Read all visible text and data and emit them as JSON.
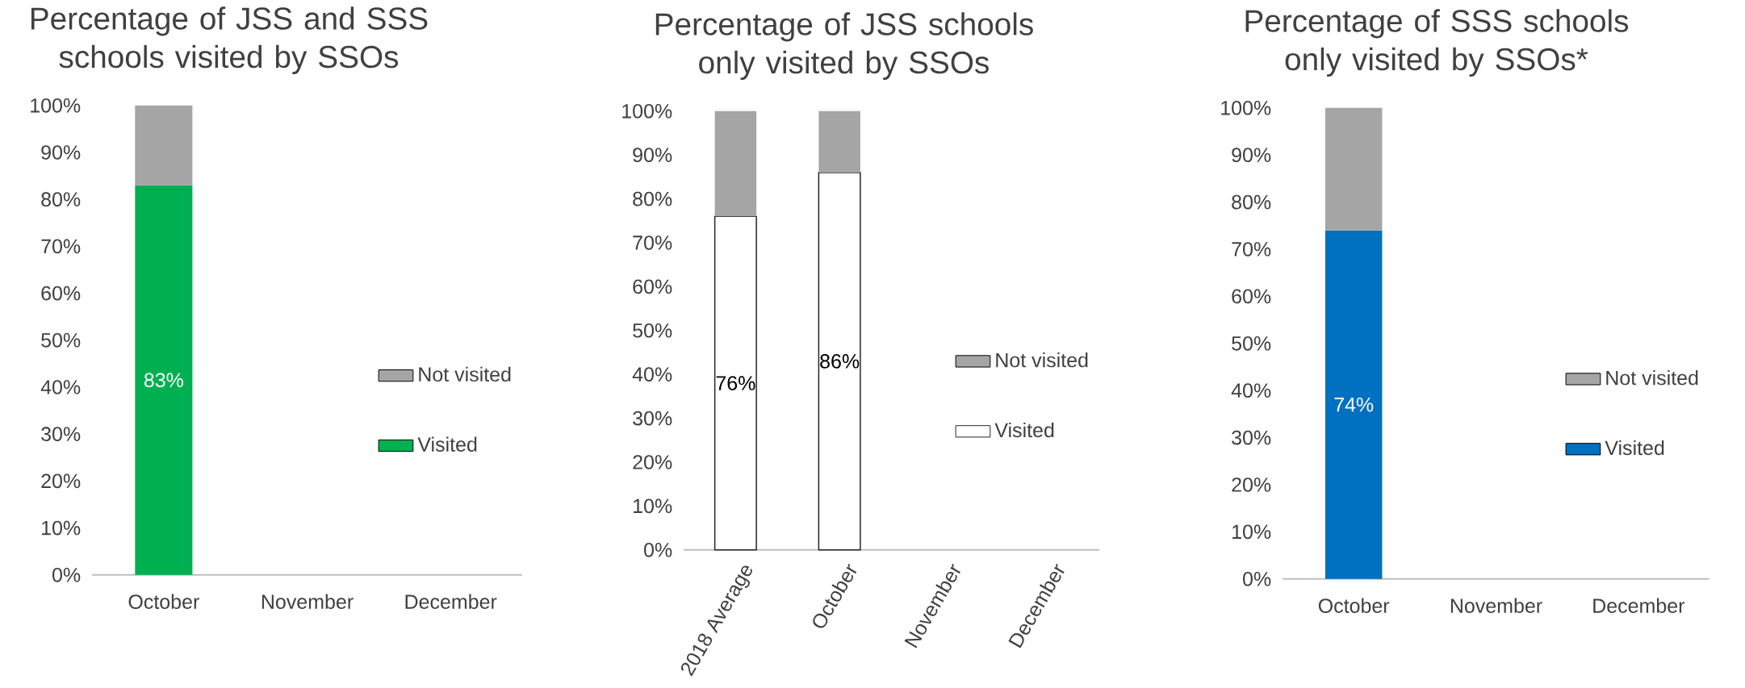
{
  "chart_data": [
    {
      "type": "bar",
      "title": "Percentage of JSS and SSS schools visited by SSOs",
      "categories": [
        "October",
        "November",
        "December"
      ],
      "stacked": true,
      "ylim": [
        0,
        100
      ],
      "yticks": [
        {
          "value": 0,
          "label": "0%"
        },
        {
          "value": 10,
          "label": "10%"
        },
        {
          "value": 20,
          "label": "20%"
        },
        {
          "value": 30,
          "label": "30%"
        },
        {
          "value": 40,
          "label": "40%"
        },
        {
          "value": 50,
          "label": "50%"
        },
        {
          "value": 60,
          "label": "60%"
        },
        {
          "value": 70,
          "label": "70%"
        },
        {
          "value": 80,
          "label": "80%"
        },
        {
          "value": 90,
          "label": "90%"
        },
        {
          "value": 100,
          "label": "100%"
        }
      ],
      "legend": "right",
      "series": [
        {
          "name": "Visited",
          "color": "#00b050",
          "values": [
            83,
            null,
            null
          ],
          "value_labels": [
            "83%",
            null,
            null
          ]
        },
        {
          "name": "Not visited",
          "color": "#a5a5a5",
          "values": [
            17,
            null,
            null
          ]
        }
      ]
    },
    {
      "type": "bar",
      "title": "Percentage of JSS schools only visited by SSOs",
      "categories": [
        "2018 Average",
        "October",
        "November",
        "December"
      ],
      "stacked": true,
      "ylim": [
        0,
        100
      ],
      "yticks": [
        {
          "value": 0,
          "label": "0%"
        },
        {
          "value": 10,
          "label": "10%"
        },
        {
          "value": 20,
          "label": "20%"
        },
        {
          "value": 30,
          "label": "30%"
        },
        {
          "value": 40,
          "label": "40%"
        },
        {
          "value": 50,
          "label": "50%"
        },
        {
          "value": 60,
          "label": "60%"
        },
        {
          "value": 70,
          "label": "70%"
        },
        {
          "value": 80,
          "label": "80%"
        },
        {
          "value": 90,
          "label": "90%"
        },
        {
          "value": 100,
          "label": "100%"
        }
      ],
      "legend": "right",
      "series": [
        {
          "name": "Visited",
          "color": "#ffffff",
          "values": [
            76,
            86,
            null,
            null
          ],
          "value_labels": [
            "76%",
            "86%",
            null,
            null
          ]
        },
        {
          "name": "Not visited",
          "color": "#a5a5a5",
          "values": [
            24,
            14,
            null,
            null
          ]
        }
      ]
    },
    {
      "type": "bar",
      "title": "Percentage of SSS schools only visited by SSOs*",
      "categories": [
        "October",
        "November",
        "December"
      ],
      "stacked": true,
      "ylim": [
        0,
        100
      ],
      "yticks": [
        {
          "value": 0,
          "label": "0%"
        },
        {
          "value": 10,
          "label": "10%"
        },
        {
          "value": 20,
          "label": "20%"
        },
        {
          "value": 30,
          "label": "30%"
        },
        {
          "value": 40,
          "label": "40%"
        },
        {
          "value": 50,
          "label": "50%"
        },
        {
          "value": 60,
          "label": "60%"
        },
        {
          "value": 70,
          "label": "70%"
        },
        {
          "value": 80,
          "label": "80%"
        },
        {
          "value": 90,
          "label": "90%"
        },
        {
          "value": 100,
          "label": "100%"
        }
      ],
      "legend": "right",
      "series": [
        {
          "name": "Visited",
          "color": "#0070c0",
          "values": [
            74,
            null,
            null
          ],
          "value_labels": [
            "74%",
            null,
            null
          ]
        },
        {
          "name": "Not visited",
          "color": "#a5a5a5",
          "values": [
            26,
            null,
            null
          ]
        }
      ]
    }
  ]
}
